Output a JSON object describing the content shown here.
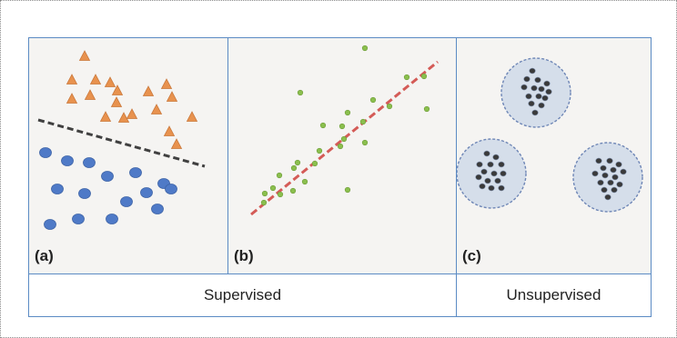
{
  "panels": [
    {
      "label": "(a)",
      "kind": "classification",
      "point_color": "#4f7ac7",
      "triangle_color": "#e8924e",
      "boundary_color": "#404040"
    },
    {
      "label": "(b)",
      "kind": "regression",
      "point_color": "#8bbf4e",
      "fit_line_color": "#d45b57"
    },
    {
      "label": "(c)",
      "kind": "clustering",
      "cluster_fill": "#d5deea",
      "cluster_border": "#6e86b6",
      "dot_color": "#3a3a3a"
    }
  ],
  "categories": {
    "supervised": "Supervised",
    "unsupervised": "Unsupervised"
  },
  "colors": {
    "border": "#5b8bc4",
    "panel_background": "#f5f4f2"
  }
}
